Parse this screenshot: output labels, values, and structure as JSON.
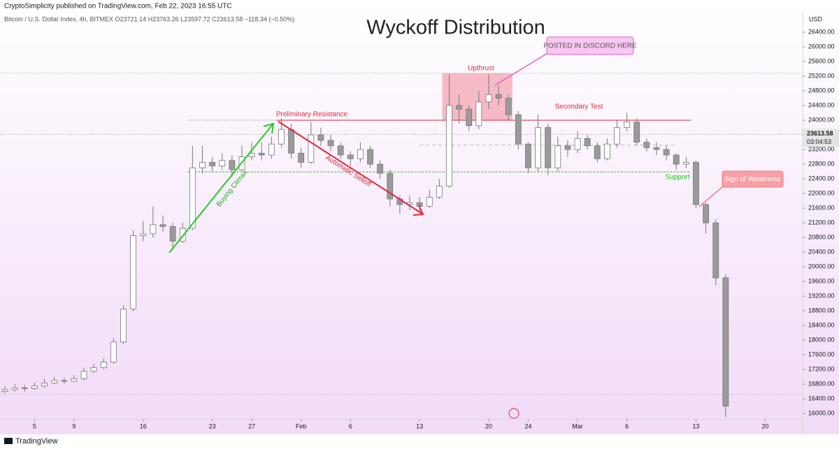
{
  "header": "CryptoSimplicity published on TradingView.com, Feb 22, 2023 16:55 UTC",
  "footer": "TradingView",
  "chart_data": {
    "type": "candlestick",
    "title": "Wyckoff Distribution",
    "symbol": "Bitcoin / U.S. Dollar Index, 4h, BITMEX  O23721.14  H23763.26  L23597.72  C23613.58  −118.34 (−0.50%)",
    "currency": "USD",
    "up_color": "#ffffff",
    "down_color": "#9a9a9a",
    "x": [
      1,
      2,
      3,
      4,
      5,
      6,
      7,
      8,
      9,
      10,
      11,
      12,
      13,
      14,
      15,
      16,
      17,
      18,
      19,
      20,
      21,
      22,
      23,
      24,
      25,
      26,
      27,
      28,
      29,
      30,
      31,
      32,
      33,
      34,
      35,
      36,
      37,
      38,
      39,
      40,
      41,
      42,
      43,
      44,
      45,
      46,
      47,
      48,
      49,
      50,
      51,
      52,
      53,
      54,
      55,
      56,
      57,
      58,
      59,
      60,
      61,
      62,
      63,
      64,
      65,
      66,
      67,
      68,
      69,
      70,
      71,
      72,
      73,
      74
    ],
    "open": [
      16600,
      16650,
      16700,
      16680,
      16750,
      16830,
      16900,
      16880,
      16950,
      17150,
      17250,
      17400,
      17950,
      18850,
      20850,
      20900,
      21150,
      21100,
      20700,
      21050,
      22700,
      22850,
      22750,
      22900,
      22650,
      23000,
      23100,
      23050,
      23350,
      23750,
      23100,
      22850,
      23600,
      23450,
      23300,
      23050,
      22950,
      23200,
      22800,
      22550,
      21850,
      21700,
      21750,
      21650,
      21900,
      22200,
      24400,
      24300,
      23850,
      24500,
      24700,
      24600,
      24150,
      23350,
      22700,
      23800,
      22700,
      23300,
      23200,
      23500,
      23300,
      22950,
      23350,
      23800,
      23950,
      23400,
      23250,
      23200,
      23050,
      22800,
      22850,
      21700,
      21200,
      19700
    ],
    "high": [
      16750,
      16800,
      16780,
      16850,
      16950,
      17000,
      16980,
      17050,
      17250,
      17350,
      17500,
      18050,
      18950,
      21000,
      21250,
      21650,
      21400,
      21200,
      21200,
      23300,
      23300,
      23000,
      23100,
      23050,
      23300,
      23400,
      23400,
      23550,
      24050,
      23900,
      23250,
      23950,
      23800,
      23600,
      23400,
      23150,
      23400,
      23300,
      22900,
      22650,
      21950,
      21950,
      21900,
      22100,
      22400,
      25250,
      24700,
      24400,
      24800,
      25250,
      24950,
      24700,
      24250,
      23400,
      24150,
      23900,
      23550,
      23450,
      23700,
      23600,
      23400,
      23500,
      24000,
      24200,
      24050,
      23500,
      23400,
      23300,
      23100,
      23000,
      22900,
      21750,
      21300,
      19800
    ],
    "low": [
      16550,
      16600,
      16600,
      16650,
      16700,
      16800,
      16800,
      16850,
      16900,
      17100,
      17200,
      17350,
      17900,
      18800,
      20700,
      20800,
      20950,
      20450,
      20650,
      21000,
      22550,
      22600,
      22650,
      22450,
      22600,
      22900,
      22900,
      22950,
      23250,
      22950,
      22700,
      22800,
      23300,
      23150,
      22950,
      22750,
      22850,
      22700,
      22400,
      21650,
      21450,
      21550,
      21450,
      21600,
      21850,
      22150,
      23900,
      23700,
      23750,
      24300,
      24400,
      24000,
      23200,
      22550,
      22600,
      22500,
      22600,
      23000,
      23100,
      23200,
      22850,
      22900,
      23250,
      23700,
      23300,
      23150,
      23050,
      22900,
      22650,
      22700,
      21600,
      20900,
      19500,
      15900
    ],
    "close": [
      16650,
      16700,
      16680,
      16750,
      16830,
      16900,
      16880,
      16950,
      17150,
      17250,
      17400,
      17950,
      18850,
      20850,
      20900,
      21150,
      21100,
      20700,
      21050,
      22700,
      22850,
      22750,
      22900,
      22650,
      23000,
      23100,
      23050,
      23350,
      23750,
      23100,
      22850,
      23600,
      23450,
      23300,
      23050,
      22950,
      23200,
      22800,
      22550,
      21850,
      21700,
      21750,
      21650,
      21900,
      22200,
      24400,
      24300,
      23850,
      24500,
      24700,
      24600,
      24150,
      23350,
      22700,
      23800,
      22700,
      23300,
      23200,
      23500,
      23300,
      22950,
      23350,
      23800,
      23950,
      23400,
      23250,
      23200,
      23050,
      22800,
      22850,
      21700,
      21200,
      19700,
      16200
    ],
    "xlim": [
      0.5,
      81.8
    ],
    "xticks": [
      {
        "value": 4,
        "label": "5"
      },
      {
        "value": 8,
        "label": "9"
      },
      {
        "value": 15,
        "label": "16"
      },
      {
        "value": 22,
        "label": "23"
      },
      {
        "value": 26,
        "label": "27"
      },
      {
        "value": 31,
        "label": "Feb"
      },
      {
        "value": 36,
        "label": "6"
      },
      {
        "value": 43,
        "label": "13"
      },
      {
        "value": 50,
        "label": "20"
      },
      {
        "value": 54,
        "label": "24"
      },
      {
        "value": 59,
        "label": "Mar"
      },
      {
        "value": 64,
        "label": "6"
      },
      {
        "value": 71,
        "label": "13"
      },
      {
        "value": 78,
        "label": "20"
      }
    ],
    "ylim": [
      15850,
      26935
    ],
    "yticks": [
      {
        "value": 16000,
        "label": "16000.00"
      },
      {
        "value": 16400,
        "label": "16400.00"
      },
      {
        "value": 16800,
        "label": "16800.00"
      },
      {
        "value": 17200,
        "label": "17200.00"
      },
      {
        "value": 17600,
        "label": "17600.00"
      },
      {
        "value": 18000,
        "label": "18000.00"
      },
      {
        "value": 18400,
        "label": "18400.00"
      },
      {
        "value": 18800,
        "label": "18800.00"
      },
      {
        "value": 19200,
        "label": "19200.00"
      },
      {
        "value": 19600,
        "label": "19600.00"
      },
      {
        "value": 20000,
        "label": "20000.00"
      },
      {
        "value": 20400,
        "label": "20400.00"
      },
      {
        "value": 20800,
        "label": "20800.00"
      },
      {
        "value": 21200,
        "label": "21200.00"
      },
      {
        "value": 21600,
        "label": "21600.00"
      },
      {
        "value": 22000,
        "label": "22000.00"
      },
      {
        "value": 22400,
        "label": "22400.00"
      },
      {
        "value": 22800,
        "label": "22800.00"
      },
      {
        "value": 23200,
        "label": "23200.00"
      },
      {
        "value": 23600,
        "label": "23600.00"
      },
      {
        "value": 24000,
        "label": "24000.00"
      },
      {
        "value": 24400,
        "label": "24400.00"
      },
      {
        "value": 24800,
        "label": "24800.00"
      },
      {
        "value": 25200,
        "label": "25200.00"
      },
      {
        "value": 25600,
        "label": "25600.00"
      },
      {
        "value": 26000,
        "label": "26000.00"
      },
      {
        "value": 26400,
        "label": "26400.00"
      }
    ],
    "last_price": 23613.58,
    "countdown": "03:04:53",
    "resistance": 24000,
    "support": 22590,
    "upthrust_zone": [
      24000,
      25280
    ],
    "reference_lines": [
      25280,
      23320,
      16520
    ],
    "labels": {
      "upthrust": "Upthrust",
      "discord": "POSTED IN DISCORD HERE",
      "preliminary_resistance": "Preliminary Resistance",
      "secondary_test": "Secondary Test",
      "automatic_selloff": "Automatic Selloff",
      "buying_climax": "Buying Climax",
      "support": "Support",
      "sign_of_weakness": "Sign of Weakness"
    }
  }
}
